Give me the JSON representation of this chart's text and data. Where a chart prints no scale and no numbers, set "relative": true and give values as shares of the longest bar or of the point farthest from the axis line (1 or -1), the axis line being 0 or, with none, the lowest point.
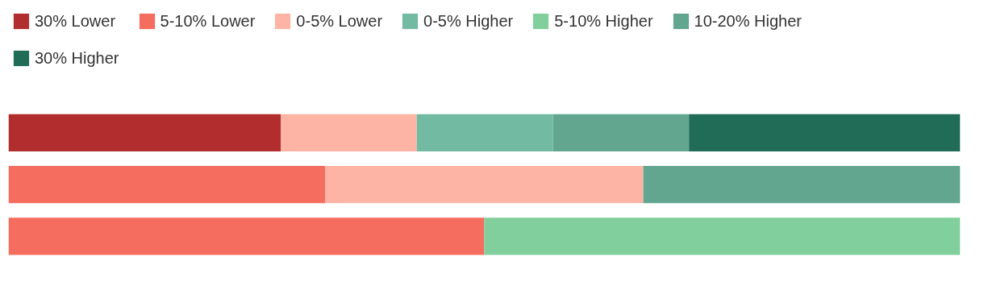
{
  "chart_data": {
    "type": "bar",
    "orientation": "horizontal",
    "stacked": true,
    "relative": true,
    "legend": "top",
    "grid": false,
    "categories": [
      null,
      null,
      null
    ],
    "series": [
      {
        "name": "30% Lower",
        "color": "#b22e2e",
        "values": [
          0.286,
          null,
          null
        ]
      },
      {
        "name": "5-10% Lower",
        "color": "#f46d5f",
        "values": [
          null,
          0.333,
          0.5
        ]
      },
      {
        "name": "0-5% Lower",
        "color": "#fdb4a4",
        "values": [
          0.143,
          0.334,
          null
        ]
      },
      {
        "name": "0-5% Higher",
        "color": "#72bba2",
        "values": [
          0.143,
          null,
          null
        ]
      },
      {
        "name": "5-10% Higher",
        "color": "#80cf9c",
        "values": [
          null,
          null,
          0.5
        ]
      },
      {
        "name": "10-20% Higher",
        "color": "#62a68f",
        "values": [
          0.143,
          0.333,
          null
        ]
      },
      {
        "name": "30% Higher",
        "color": "#206c57",
        "values": [
          0.285,
          null,
          null
        ]
      }
    ]
  }
}
